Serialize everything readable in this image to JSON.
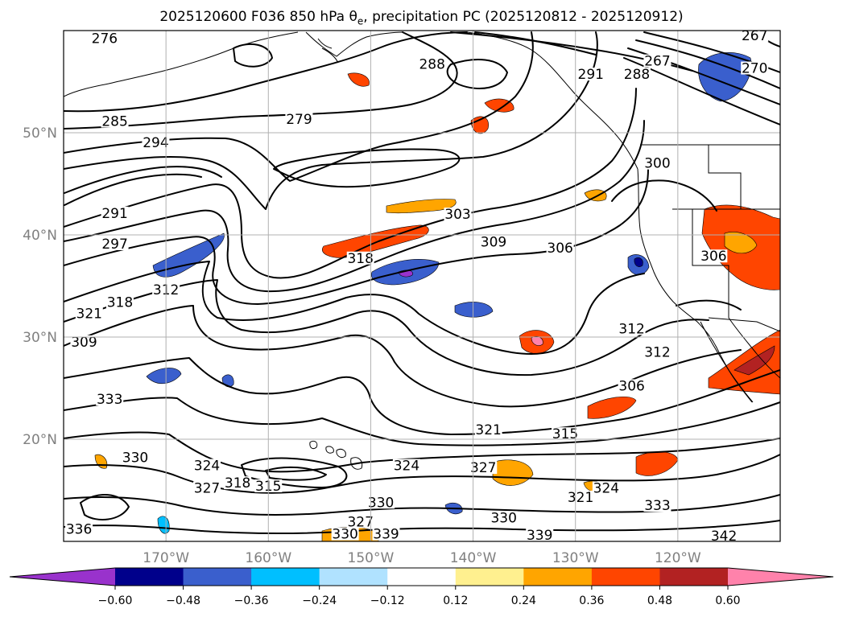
{
  "title": {
    "prefix": "2025120600 F036 850 hPa θ",
    "sub": "e",
    "suffix": ", precipitation PC (2025120812 - 2025120912)"
  },
  "map": {
    "lon_range": [
      -180,
      -110
    ],
    "lat_range": [
      10,
      60
    ],
    "lat_ticks": [
      {
        "value": 20,
        "label": "20°N"
      },
      {
        "value": 30,
        "label": "30°N"
      },
      {
        "value": 40,
        "label": "40°N"
      },
      {
        "value": 50,
        "label": "50°N"
      }
    ],
    "lon_ticks": [
      {
        "value": -170,
        "label": "170°W"
      },
      {
        "value": -160,
        "label": "160°W"
      },
      {
        "value": -150,
        "label": "150°W"
      },
      {
        "value": -140,
        "label": "140°W"
      },
      {
        "value": -130,
        "label": "130°W"
      },
      {
        "value": -120,
        "label": "120°W"
      }
    ],
    "contour_labels": [
      {
        "text": "276",
        "lon": -176.0,
        "lat": 59.0
      },
      {
        "text": "288",
        "lon": -144.0,
        "lat": 56.5
      },
      {
        "text": "291",
        "lon": -128.5,
        "lat": 55.5
      },
      {
        "text": "288",
        "lon": -124.0,
        "lat": 55.5
      },
      {
        "text": "267",
        "lon": -122.0,
        "lat": 56.8
      },
      {
        "text": "279",
        "lon": -157.0,
        "lat": 51.1
      },
      {
        "text": "285",
        "lon": -175.0,
        "lat": 50.9
      },
      {
        "text": "294",
        "lon": -171.0,
        "lat": 48.8
      },
      {
        "text": "300",
        "lon": -122.0,
        "lat": 46.8
      },
      {
        "text": "291",
        "lon": -175.0,
        "lat": 41.9
      },
      {
        "text": "303",
        "lon": -141.5,
        "lat": 41.8
      },
      {
        "text": "297",
        "lon": -175.0,
        "lat": 38.9
      },
      {
        "text": "309",
        "lon": -138.0,
        "lat": 39.1
      },
      {
        "text": "306",
        "lon": -131.5,
        "lat": 38.5
      },
      {
        "text": "318",
        "lon": -151.0,
        "lat": 37.5
      },
      {
        "text": "306",
        "lon": -116.5,
        "lat": 37.7
      },
      {
        "text": "312",
        "lon": -170.0,
        "lat": 34.4
      },
      {
        "text": "318",
        "lon": -174.5,
        "lat": 33.2
      },
      {
        "text": "321",
        "lon": -177.5,
        "lat": 32.1
      },
      {
        "text": "309",
        "lon": -178.0,
        "lat": 29.3
      },
      {
        "text": "312",
        "lon": -124.5,
        "lat": 30.6
      },
      {
        "text": "312",
        "lon": -122.0,
        "lat": 28.3
      },
      {
        "text": "306",
        "lon": -124.5,
        "lat": 25.0
      },
      {
        "text": "333",
        "lon": -175.5,
        "lat": 23.7
      },
      {
        "text": "321",
        "lon": -138.5,
        "lat": 20.7
      },
      {
        "text": "315",
        "lon": -131.0,
        "lat": 20.3
      },
      {
        "text": "330",
        "lon": -173.0,
        "lat": 18.0
      },
      {
        "text": "324",
        "lon": -166.0,
        "lat": 17.2
      },
      {
        "text": "324",
        "lon": -146.5,
        "lat": 17.2
      },
      {
        "text": "327",
        "lon": -139.0,
        "lat": 17.0
      },
      {
        "text": "327",
        "lon": -166.0,
        "lat": 15.0
      },
      {
        "text": "318",
        "lon": -163.0,
        "lat": 15.5
      },
      {
        "text": "315",
        "lon": -160.0,
        "lat": 15.2
      },
      {
        "text": "324",
        "lon": -127.0,
        "lat": 15.0
      },
      {
        "text": "321",
        "lon": -129.5,
        "lat": 14.1
      },
      {
        "text": "333",
        "lon": -122.0,
        "lat": 13.3
      },
      {
        "text": "330",
        "lon": -149.0,
        "lat": 13.6
      },
      {
        "text": "330",
        "lon": -137.0,
        "lat": 12.1
      },
      {
        "text": "327",
        "lon": -151.0,
        "lat": 11.7
      },
      {
        "text": "336",
        "lon": -178.5,
        "lat": 11.0
      },
      {
        "text": "330",
        "lon": -152.5,
        "lat": 10.5
      },
      {
        "text": "339",
        "lon": -148.5,
        "lat": 10.5
      },
      {
        "text": "339",
        "lon": -133.5,
        "lat": 10.4
      },
      {
        "text": "342",
        "lon": -115.5,
        "lat": 10.3
      },
      {
        "text": "270",
        "lon": -112.5,
        "lat": 56.1
      },
      {
        "text": "267",
        "lon": -112.5,
        "lat": 59.3
      }
    ]
  },
  "colorbar": {
    "levels": [
      -0.72,
      -0.6,
      -0.48,
      -0.36,
      -0.24,
      -0.12,
      0.12,
      0.24,
      0.36,
      0.48,
      0.6,
      0.72
    ],
    "colors": [
      "#9932cc",
      "#00008b",
      "#3a5fcd",
      "#00bfff",
      "#b0e2ff",
      "#ffffff",
      "#fff08f",
      "#ffa500",
      "#ff4500",
      "#b22222",
      "#ff82ab"
    ],
    "tick_labels": [
      "−0.60",
      "−0.48",
      "−0.36",
      "−0.24",
      "−0.12",
      "0.12",
      "0.24",
      "0.36",
      "0.48",
      "0.60"
    ]
  },
  "palette": {
    "coast": "#000000",
    "contour": "#000000",
    "grid": "#b0b0b0"
  }
}
